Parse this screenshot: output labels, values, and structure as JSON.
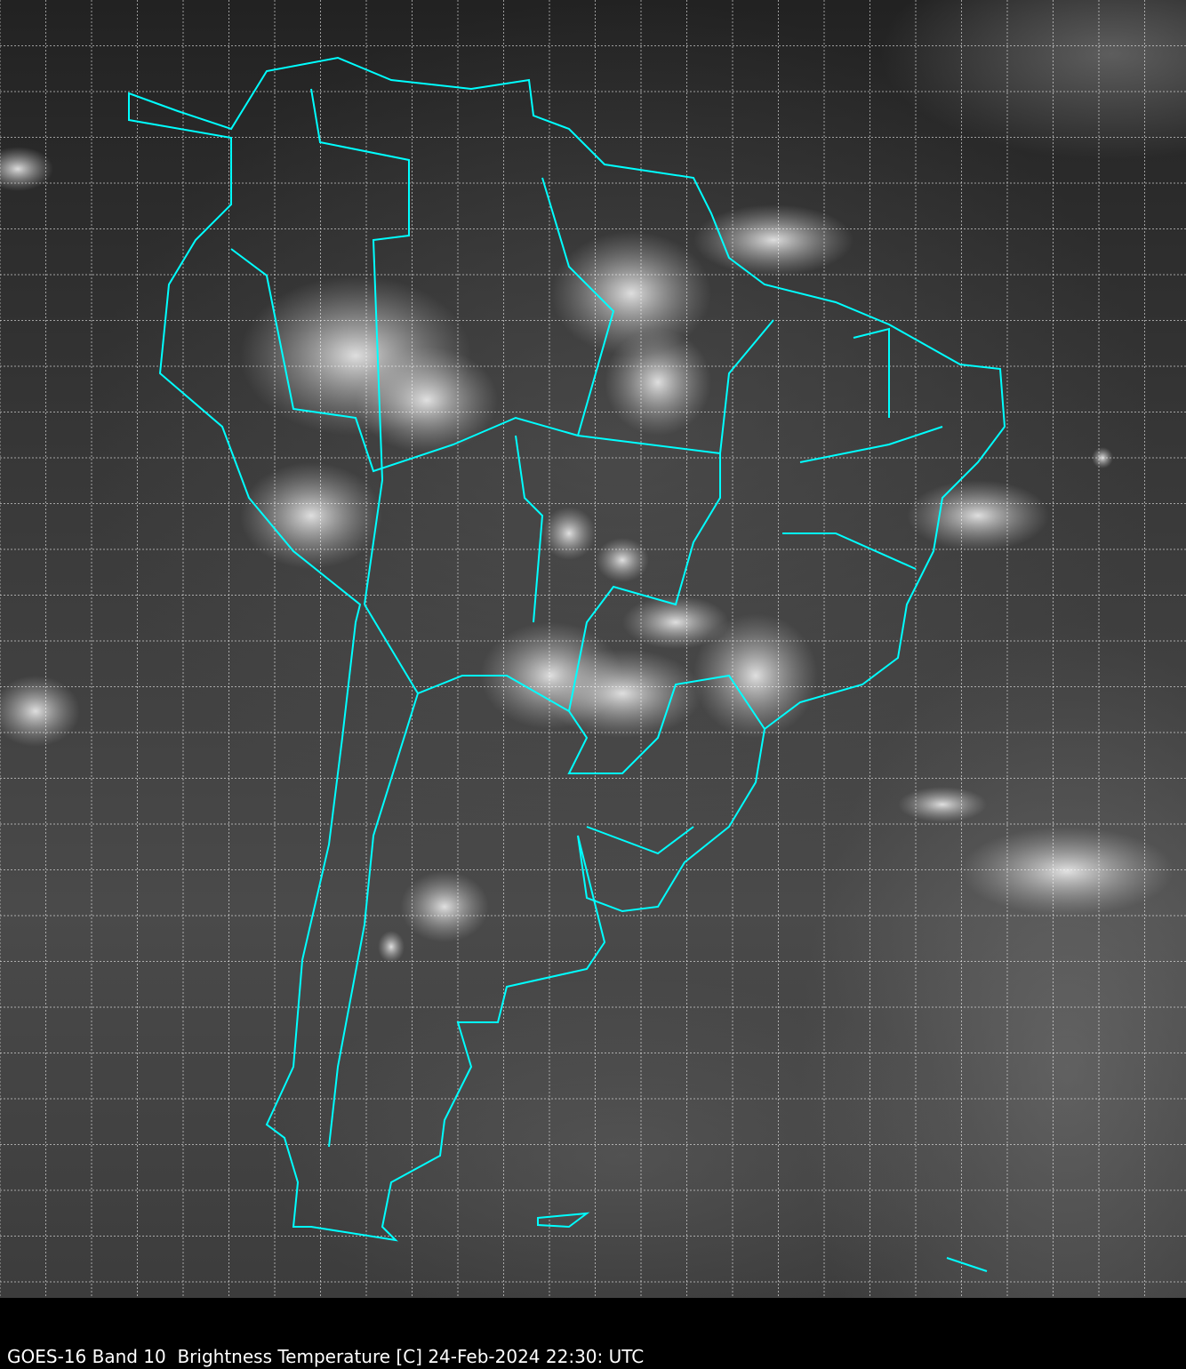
{
  "caption": "GOES-16 Band 10  Brightness Temperature [C] 24-Feb-2024 22:30: UTC",
  "colors": {
    "borders": "#00ffff",
    "grid": "#ffffff",
    "background": "#000000"
  },
  "map": {
    "type": "satellite-infrared-grayscale",
    "region": "South America",
    "gridlines": true
  }
}
